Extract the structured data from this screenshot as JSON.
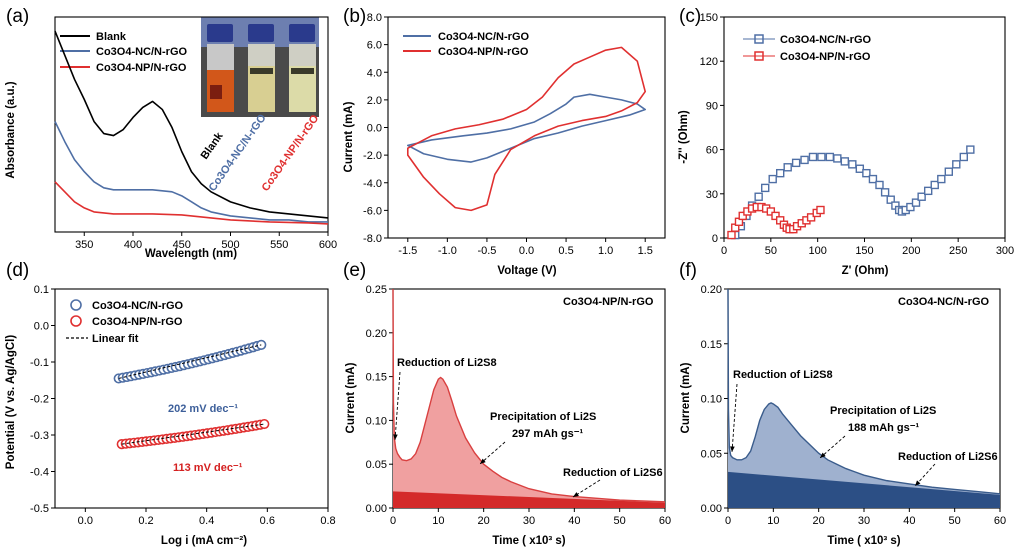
{
  "chart_data": [
    {
      "panel": "(a)",
      "type": "line",
      "xlabel": "Wavelength (nm)",
      "ylabel": "Absorbance (a.u.)",
      "xlim": [
        320,
        600
      ],
      "xticks": [
        350,
        400,
        450,
        500,
        550,
        600
      ],
      "legend": "top-left",
      "annotations": [
        "Blank",
        "Co3O4-NC/N-rGO",
        "Co3O4-NP/N-rGO"
      ],
      "series": [
        {
          "name": "Blank",
          "color": "#000000",
          "x": [
            320,
            330,
            340,
            350,
            360,
            370,
            380,
            390,
            400,
            410,
            420,
            430,
            440,
            450,
            460,
            470,
            480,
            500,
            520,
            540,
            560,
            580,
            600
          ],
          "y": [
            1.0,
            0.88,
            0.76,
            0.66,
            0.55,
            0.49,
            0.48,
            0.51,
            0.57,
            0.62,
            0.65,
            0.61,
            0.52,
            0.4,
            0.3,
            0.24,
            0.2,
            0.15,
            0.12,
            0.1,
            0.09,
            0.08,
            0.07
          ]
        },
        {
          "name": "Co3O4-NC/N-rGO",
          "color": "#4f6fa5",
          "x": [
            320,
            330,
            340,
            350,
            360,
            370,
            380,
            390,
            400,
            420,
            440,
            450,
            460,
            470,
            480,
            500,
            520,
            540,
            560,
            580,
            600
          ],
          "y": [
            0.55,
            0.45,
            0.36,
            0.3,
            0.25,
            0.22,
            0.21,
            0.21,
            0.21,
            0.21,
            0.2,
            0.18,
            0.15,
            0.12,
            0.1,
            0.08,
            0.07,
            0.06,
            0.06,
            0.05,
            0.05
          ]
        },
        {
          "name": "Co3O4-NP/N-rGO",
          "color": "#e03030",
          "x": [
            320,
            330,
            340,
            350,
            360,
            380,
            400,
            420,
            450,
            480,
            500,
            540,
            580,
            600
          ],
          "y": [
            0.25,
            0.2,
            0.15,
            0.12,
            0.1,
            0.09,
            0.09,
            0.09,
            0.085,
            0.07,
            0.06,
            0.05,
            0.045,
            0.04
          ]
        }
      ]
    },
    {
      "panel": "(b)",
      "type": "line",
      "xlabel": "Voltage (V)",
      "ylabel": "Current (mA)",
      "xlim": [
        -1.75,
        1.75
      ],
      "ylim": [
        -8,
        8
      ],
      "xticks": [
        -1.5,
        -1.0,
        -0.5,
        0.0,
        0.5,
        1.0,
        1.5
      ],
      "yticks": [
        -8,
        -6,
        -4,
        -2,
        0,
        2,
        4,
        6,
        8
      ],
      "legend": "top-left",
      "series": [
        {
          "name": "Co3O4-NC/N-rGO",
          "color": "#4f6fa5",
          "x": [
            -1.5,
            -1.2,
            -0.8,
            -0.5,
            -0.2,
            0.1,
            0.3,
            0.5,
            0.6,
            0.8,
            1.0,
            1.2,
            1.4,
            1.5,
            1.3,
            1.0,
            0.7,
            0.4,
            0.1,
            -0.2,
            -0.5,
            -0.7,
            -1.0,
            -1.3,
            -1.5
          ],
          "y": [
            -1.3,
            -0.9,
            -0.6,
            -0.4,
            -0.1,
            0.4,
            1.0,
            1.7,
            2.2,
            2.4,
            2.2,
            2.0,
            1.7,
            1.3,
            0.9,
            0.5,
            0.1,
            -0.4,
            -0.8,
            -1.5,
            -2.2,
            -2.5,
            -2.3,
            -1.9,
            -1.3
          ]
        },
        {
          "name": "Co3O4-NP/N-rGO",
          "color": "#e03030",
          "x": [
            -1.5,
            -1.2,
            -0.9,
            -0.6,
            -0.3,
            0.0,
            0.2,
            0.4,
            0.6,
            0.8,
            1.0,
            1.2,
            1.4,
            1.5,
            1.4,
            1.2,
            1.0,
            0.7,
            0.4,
            0.1,
            -0.2,
            -0.4,
            -0.5,
            -0.7,
            -0.9,
            -1.1,
            -1.3,
            -1.5
          ],
          "y": [
            -1.5,
            -0.6,
            -0.1,
            0.2,
            0.6,
            1.3,
            2.2,
            3.6,
            4.6,
            5.1,
            5.6,
            5.8,
            4.8,
            2.6,
            1.8,
            1.2,
            0.8,
            0.5,
            0.1,
            -0.6,
            -1.6,
            -3.4,
            -5.6,
            -6.0,
            -5.8,
            -4.8,
            -3.6,
            -2.0
          ]
        }
      ]
    },
    {
      "panel": "(c)",
      "type": "scatter",
      "xlabel": "Z' (Ohm)",
      "ylabel": "-Z'' (Ohm)",
      "xlim": [
        0,
        300
      ],
      "ylim": [
        0,
        150
      ],
      "xticks": [
        0,
        50,
        100,
        150,
        200,
        250,
        300
      ],
      "yticks": [
        0,
        30,
        60,
        90,
        120,
        150
      ],
      "legend": "top-left",
      "series": [
        {
          "name": "Co3O4-NC/N-rGO",
          "color": "#4f6fa5",
          "x": [
            12,
            18,
            24,
            30,
            37,
            44,
            52,
            60,
            68,
            77,
            86,
            95,
            104,
            113,
            121,
            129,
            137,
            145,
            152,
            159,
            166,
            172,
            178,
            183,
            187,
            190,
            194,
            199,
            205,
            211,
            218,
            225,
            232,
            240,
            248,
            256,
            263
          ],
          "y": [
            2,
            8,
            15,
            22,
            28,
            34,
            40,
            44,
            48,
            51,
            53,
            55,
            55,
            55,
            54,
            52,
            50,
            47,
            44,
            40,
            36,
            31,
            26,
            22,
            19,
            18,
            19,
            21,
            24,
            28,
            32,
            36,
            40,
            45,
            50,
            55,
            60
          ]
        },
        {
          "name": "Co3O4-NP/N-rGO",
          "color": "#e03030",
          "x": [
            8,
            12,
            16,
            20,
            25,
            30,
            35,
            40,
            45,
            50,
            55,
            60,
            64,
            67,
            70,
            74,
            78,
            83,
            88,
            93,
            99,
            103
          ],
          "y": [
            2,
            7,
            11,
            15,
            18,
            20,
            21,
            21,
            20,
            18,
            15,
            12,
            9,
            7,
            6,
            6,
            8,
            10,
            12,
            14,
            17,
            19
          ]
        }
      ]
    },
    {
      "panel": "(d)",
      "type": "scatter",
      "xlabel": "Log i (mA cm⁻²)",
      "ylabel": "Potential (V vs. Ag/AgCl)",
      "xlim": [
        -0.1,
        0.8
      ],
      "ylim": [
        -0.5,
        0.1
      ],
      "xticks": [
        0.0,
        0.2,
        0.4,
        0.6,
        0.8
      ],
      "yticks": [
        -0.5,
        -0.4,
        -0.3,
        -0.2,
        -0.1,
        0.0,
        0.1
      ],
      "legend": "top-left",
      "annotations": [
        "202 mV dec⁻¹",
        "113 mV dec⁻¹"
      ],
      "series": [
        {
          "name": "Co3O4-NC/N-rGO",
          "color": "#4f6fa5",
          "x_range": [
            0.11,
            0.58
          ],
          "y_range": [
            -0.145,
            -0.053
          ],
          "n": 36
        },
        {
          "name": "Co3O4-NP/N-rGO",
          "color": "#e03030",
          "x_range": [
            0.12,
            0.59
          ],
          "y_range": [
            -0.325,
            -0.27
          ],
          "n": 36
        },
        {
          "name": "Linear fit",
          "color": "#000000",
          "dashed": true
        }
      ]
    },
    {
      "panel": "(e)",
      "type": "area",
      "title": "Co3O4-NP/N-rGO",
      "xlabel": "Time ( x10³ s)",
      "ylabel": "Current (mA)",
      "xlim": [
        0,
        60
      ],
      "ylim": [
        0,
        0.25
      ],
      "xticks": [
        0,
        10,
        20,
        30,
        40,
        50,
        60
      ],
      "yticks": [
        0.0,
        0.05,
        0.1,
        0.15,
        0.2,
        0.25
      ],
      "annotations": [
        "Reduction of Li2S8",
        "Precipitation of Li2S",
        "297 mAh gs⁻¹",
        "Reduction of Li2S6"
      ],
      "series": [
        {
          "name": "current",
          "color": "#d94040",
          "x": [
            0,
            0.1,
            0.3,
            0.6,
            1,
            1.5,
            2,
            3,
            4,
            5,
            6,
            7,
            8,
            9,
            10,
            10.5,
            11,
            12,
            13,
            14,
            16,
            18,
            20,
            22,
            24,
            26,
            28,
            30,
            35,
            40,
            45,
            50,
            55,
            60
          ],
          "y": [
            0.25,
            0.12,
            0.08,
            0.068,
            0.062,
            0.058,
            0.055,
            0.054,
            0.056,
            0.062,
            0.075,
            0.095,
            0.115,
            0.135,
            0.147,
            0.149,
            0.147,
            0.138,
            0.122,
            0.105,
            0.08,
            0.063,
            0.05,
            0.042,
            0.035,
            0.03,
            0.026,
            0.022,
            0.016,
            0.013,
            0.011,
            0.009,
            0.008,
            0.007
          ]
        },
        {
          "name": "baseline",
          "color": "#c01818",
          "x": [
            0,
            60
          ],
          "y": [
            0.019,
            0.006
          ]
        }
      ]
    },
    {
      "panel": "(f)",
      "type": "area",
      "title": "Co3O4-NC/N-rGO",
      "xlabel": "Time ( x10³ s)",
      "ylabel": "Current (mA)",
      "xlim": [
        0,
        60
      ],
      "ylim": [
        0,
        0.2
      ],
      "xticks": [
        0,
        10,
        20,
        30,
        40,
        50,
        60
      ],
      "yticks": [
        0.0,
        0.05,
        0.1,
        0.15,
        0.2
      ],
      "annotations": [
        "Reduction of Li2S8",
        "Precipitation of Li2S",
        "188 mAh gs⁻¹",
        "Reduction of Li2S6"
      ],
      "series": [
        {
          "name": "current",
          "color": "#3a5c8c",
          "x": [
            0,
            0.1,
            0.3,
            0.6,
            1,
            1.5,
            2,
            3,
            4,
            5,
            6,
            7,
            8,
            9,
            9.5,
            10,
            11,
            12,
            14,
            16,
            18,
            20,
            22,
            24,
            26,
            28,
            30,
            35,
            40,
            45,
            50,
            55,
            60
          ],
          "y": [
            0.2,
            0.09,
            0.055,
            0.048,
            0.046,
            0.045,
            0.044,
            0.044,
            0.046,
            0.052,
            0.065,
            0.08,
            0.09,
            0.095,
            0.096,
            0.095,
            0.092,
            0.086,
            0.076,
            0.066,
            0.058,
            0.05,
            0.044,
            0.04,
            0.036,
            0.033,
            0.03,
            0.025,
            0.022,
            0.019,
            0.017,
            0.015,
            0.013
          ]
        },
        {
          "name": "baseline",
          "color": "#2a4a7c",
          "x": [
            0,
            60
          ],
          "y": [
            0.033,
            0.012
          ]
        }
      ]
    }
  ],
  "figure": {
    "panel_labels": [
      "(a)",
      "(b)",
      "(c)",
      "(d)",
      "(e)",
      "(f)"
    ]
  }
}
